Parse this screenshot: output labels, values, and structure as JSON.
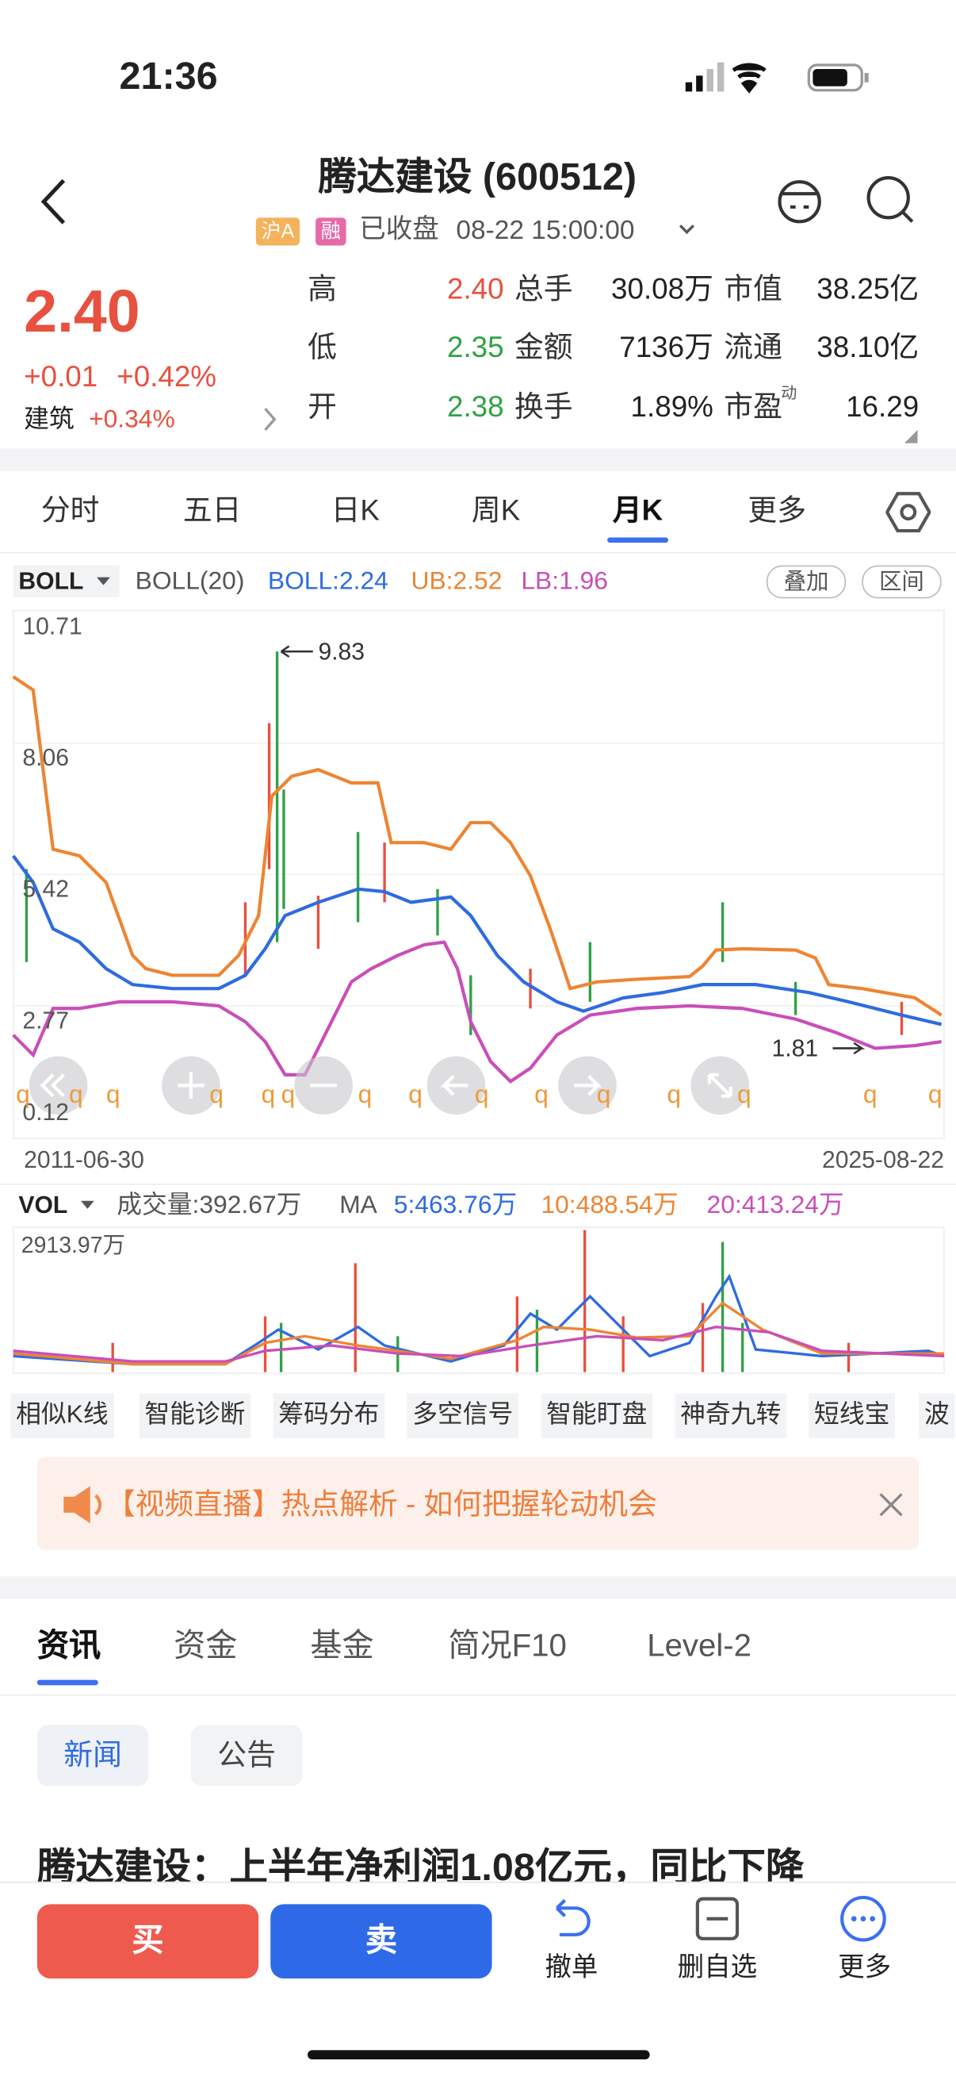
{
  "status": {
    "time": "21:36"
  },
  "header": {
    "title": "腾达建设 (600512)",
    "badges": [
      "沪A",
      "融"
    ],
    "state": "已收盘",
    "datetime": "08-22 15:00:00"
  },
  "quote": {
    "price": "2.40",
    "change": "+0.01",
    "pct": "+0.42%",
    "sector": "建筑",
    "sector_pct": "+0.34%",
    "stats": [
      [
        "高",
        "2.40",
        "总手",
        "30.08万",
        "市值",
        "38.25亿"
      ],
      [
        "低",
        "2.35",
        "金额",
        "7136万",
        "流通",
        "38.10亿"
      ],
      [
        "开",
        "2.38",
        "换手",
        "1.89%",
        "市盈",
        "16.29"
      ]
    ],
    "pe_sup": "动"
  },
  "tabs": [
    "分时",
    "五日",
    "日K",
    "周K",
    "月K",
    "更多"
  ],
  "indicator": {
    "name": "BOLL",
    "params": "BOLL(20)",
    "boll": "BOLL:2.24",
    "ub": "UB:2.52",
    "lb": "LB:1.96",
    "buttons": [
      "叠加",
      "区间"
    ]
  },
  "kchart": {
    "ylabels": [
      "10.71",
      "8.06",
      "5.42",
      "2.77",
      "0.12"
    ],
    "max_label": "9.83",
    "min_label": "1.81",
    "start_date": "2011-06-30",
    "end_date": "2025-08-22",
    "marker": "q"
  },
  "vol": {
    "name": "VOL",
    "volume": "成交量:392.67万",
    "ma": "MA",
    "ma5": "5:463.76万",
    "ma10": "10:488.54万",
    "ma20": "20:413.24万",
    "max": "2913.97万"
  },
  "tools": [
    "相似K线",
    "智能诊断",
    "筹码分布",
    "多空信号",
    "智能盯盘",
    "神奇九转",
    "短线宝",
    "波"
  ],
  "banner": "【视频直播】热点解析 - 如何把握轮动机会",
  "news_tabs": [
    "资讯",
    "资金",
    "基金",
    "简况F10",
    "Level-2"
  ],
  "subtabs": [
    "新闻",
    "公告"
  ],
  "headline": "腾达建设：上半年净利润1.08亿元，同比下降",
  "bottom": {
    "buy": "买",
    "sell": "卖",
    "actions": [
      "撤单",
      "删自选",
      "更多"
    ]
  }
}
